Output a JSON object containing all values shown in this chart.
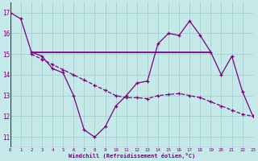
{
  "line1_x": [
    0,
    1,
    2,
    3,
    4,
    5,
    6,
    7,
    8,
    9,
    10,
    11,
    12,
    13,
    14,
    15,
    16,
    17,
    18,
    19,
    20,
    21,
    22,
    23
  ],
  "line1_y": [
    17.0,
    16.7,
    15.1,
    14.9,
    14.3,
    14.1,
    13.0,
    11.35,
    11.0,
    11.5,
    12.5,
    13.0,
    13.6,
    13.7,
    15.5,
    16.0,
    15.9,
    16.6,
    15.9,
    15.1,
    14.0,
    14.9,
    13.2,
    12.0
  ],
  "line2_x": [
    2,
    19
  ],
  "line2_y": [
    15.1,
    15.1
  ],
  "line3_x": [
    2,
    3,
    4,
    5,
    6,
    7,
    8,
    9,
    10,
    11,
    12,
    13,
    14,
    15,
    16,
    17,
    18,
    19,
    20,
    21,
    22,
    23
  ],
  "line3_y": [
    15.0,
    14.75,
    14.5,
    14.25,
    14.0,
    13.75,
    13.5,
    13.25,
    13.0,
    12.9,
    12.9,
    12.85,
    13.0,
    13.05,
    13.1,
    13.0,
    12.9,
    12.7,
    12.5,
    12.3,
    12.1,
    12.0
  ],
  "color": "#7b0080",
  "bg_color": "#c5e8e8",
  "grid_color": "#a8d4d4",
  "xlabel": "Windchill (Refroidissement éolien,°C)",
  "xlim": [
    0,
    23
  ],
  "ylim": [
    10.5,
    17.5
  ],
  "yticks": [
    11,
    12,
    13,
    14,
    15,
    16,
    17
  ],
  "xticks": [
    0,
    1,
    2,
    3,
    4,
    5,
    6,
    7,
    8,
    9,
    10,
    11,
    12,
    13,
    14,
    15,
    16,
    17,
    18,
    19,
    20,
    21,
    22,
    23
  ]
}
